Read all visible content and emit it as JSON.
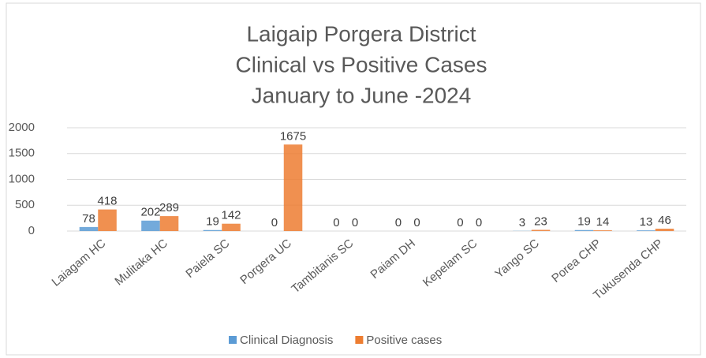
{
  "chart_data": {
    "type": "bar",
    "title": [
      "Laigaip Porgera District",
      "Clinical vs Positive Cases",
      "January to June -2024"
    ],
    "categories": [
      "Laiagam HC",
      "Mulitaka HC",
      "Paiela SC",
      "Porgera UC",
      "Tambitanis SC",
      "Paiam DH",
      "Kepelam SC",
      "Yango SC",
      "Porea CHP",
      "Tukusenda CHP"
    ],
    "series": [
      {
        "name": "Clinical Diagnosis",
        "color": "#5b9bd5",
        "values": [
          78,
          202,
          19,
          0,
          0,
          0,
          0,
          3,
          19,
          13
        ]
      },
      {
        "name": "Positive cases",
        "color": "#ed7d31",
        "values": [
          418,
          289,
          142,
          1675,
          0,
          0,
          0,
          23,
          14,
          46
        ]
      }
    ],
    "ylim": [
      0,
      2000
    ],
    "yticks": [
      0,
      500,
      1000,
      1500,
      2000
    ],
    "grid": true,
    "legend": "bottom"
  }
}
